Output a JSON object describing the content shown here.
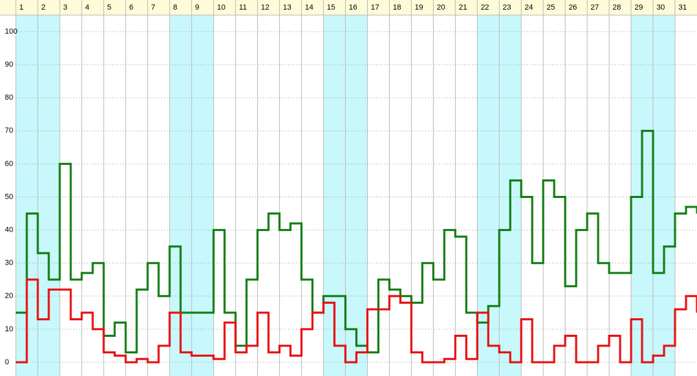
{
  "chart_data": {
    "type": "line",
    "step": true,
    "days": [
      "1",
      "2",
      "3",
      "4",
      "5",
      "6",
      "7",
      "8",
      "9",
      "10",
      "11",
      "12",
      "13",
      "14",
      "15",
      "16",
      "17",
      "18",
      "19",
      "20",
      "21",
      "22",
      "23",
      "24",
      "25",
      "26",
      "27",
      "28",
      "29",
      "30",
      "31"
    ],
    "shaded_days": [
      0,
      1,
      7,
      8,
      14,
      15,
      21,
      22,
      28,
      29
    ],
    "shade_color": "#c8f8fc",
    "header_color": "#fdfbd8",
    "x": [
      0,
      0.5,
      1,
      1.5,
      2,
      2.5,
      3,
      3.5,
      4,
      4.5,
      5,
      5.5,
      6,
      6.5,
      7,
      7.5,
      8,
      8.5,
      9,
      9.5,
      10,
      10.5,
      11,
      11.5,
      12,
      12.5,
      13,
      13.5,
      14,
      14.5,
      15,
      15.5,
      16,
      16.5,
      17,
      17.5,
      18,
      18.5,
      19,
      19.5,
      20,
      20.5,
      21,
      21.5,
      22,
      22.5,
      23,
      23.5,
      24,
      24.5,
      25,
      25.5,
      26,
      26.5,
      27,
      27.5,
      28,
      28.5,
      29,
      29.5,
      30,
      30.5,
      31
    ],
    "xlim": [
      0,
      31
    ],
    "ylim": [
      0,
      105
    ],
    "yticks": [
      0,
      10,
      20,
      30,
      40,
      50,
      60,
      70,
      80,
      90,
      100
    ],
    "grid": true,
    "series": [
      {
        "color": "#137d13",
        "values": [
          15,
          45,
          33,
          25,
          60,
          25,
          27,
          30,
          8,
          12,
          3,
          22,
          30,
          20,
          35,
          15,
          15,
          15,
          40,
          15,
          5,
          25,
          40,
          45,
          40,
          42,
          25,
          15,
          20,
          20,
          10,
          5,
          3,
          25,
          22,
          20,
          18,
          30,
          25,
          40,
          38,
          15,
          12,
          17,
          40,
          55,
          50,
          30,
          55,
          50,
          23,
          40,
          45,
          30,
          27,
          27,
          50,
          70,
          27,
          35,
          45,
          47,
          45
        ]
      },
      {
        "color": "#e81010",
        "values": [
          0,
          25,
          13,
          22,
          22,
          13,
          15,
          10,
          3,
          2,
          0,
          1,
          0,
          5,
          15,
          3,
          2,
          2,
          1,
          12,
          3,
          5,
          15,
          3,
          5,
          2,
          10,
          15,
          18,
          5,
          0,
          3,
          16,
          16,
          20,
          18,
          3,
          0,
          0,
          1,
          8,
          1,
          15,
          5,
          3,
          0,
          13,
          0,
          0,
          5,
          8,
          0,
          0,
          5,
          8,
          0,
          13,
          0,
          2,
          5,
          16,
          20,
          15
        ]
      }
    ]
  }
}
